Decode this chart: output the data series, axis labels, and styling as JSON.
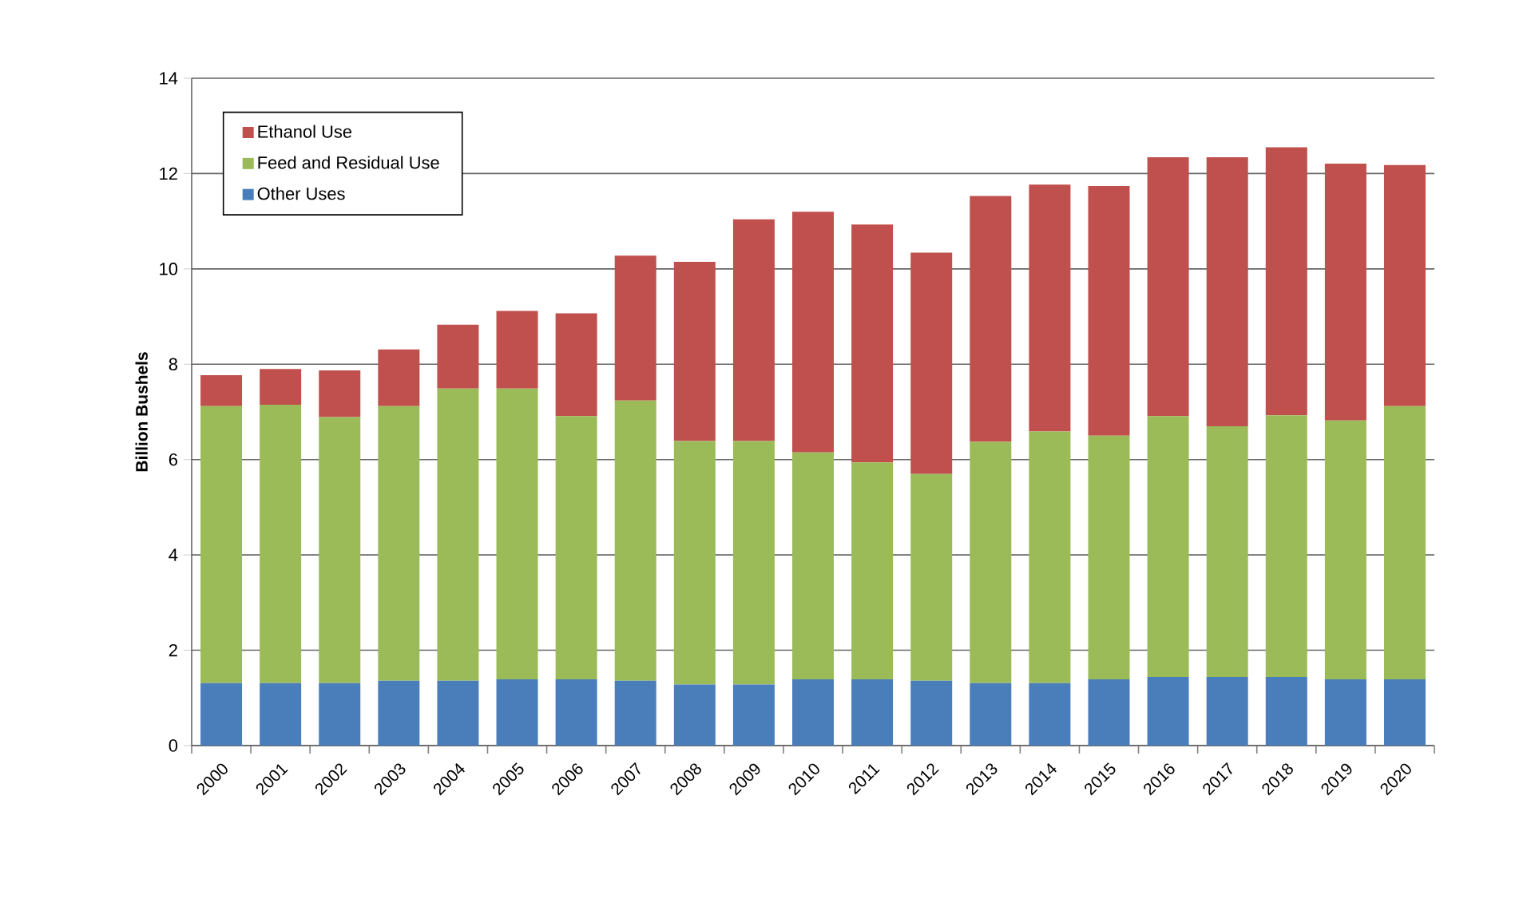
{
  "chart_data": {
    "type": "bar",
    "stacked": true,
    "ylabel": "Billion Bushels",
    "categories": [
      "2000",
      "2001",
      "2002",
      "2003",
      "2004",
      "2005",
      "2006",
      "2007",
      "2008",
      "2009",
      "2010",
      "2011",
      "2012",
      "2013",
      "2014",
      "2015",
      "2016",
      "2017",
      "2018",
      "2019",
      "2020"
    ],
    "series": [
      {
        "name": "Other Uses",
        "color": "#4a7ebb",
        "values": [
          1.31,
          1.31,
          1.31,
          1.36,
          1.36,
          1.39,
          1.39,
          1.36,
          1.28,
          1.28,
          1.39,
          1.39,
          1.36,
          1.31,
          1.31,
          1.39,
          1.44,
          1.44,
          1.44,
          1.39,
          1.39
        ]
      },
      {
        "name": "Feed and Residual Use",
        "color": "#9bbb59",
        "values": [
          5.81,
          5.84,
          5.58,
          5.76,
          6.13,
          6.1,
          5.52,
          5.88,
          5.11,
          5.11,
          4.76,
          4.55,
          4.34,
          5.06,
          5.28,
          5.11,
          5.47,
          5.26,
          5.49,
          5.43,
          5.73
        ]
      },
      {
        "name": "Ethanol Use",
        "color": "#c0504d",
        "values": [
          0.65,
          0.75,
          0.98,
          1.19,
          1.34,
          1.63,
          2.16,
          3.04,
          3.76,
          4.65,
          5.05,
          4.99,
          4.64,
          5.16,
          5.18,
          5.24,
          5.43,
          5.64,
          5.62,
          5.39,
          5.06
        ]
      }
    ],
    "ylim": [
      0,
      14
    ],
    "yticks": [
      0,
      2,
      4,
      6,
      8,
      10,
      12,
      14
    ],
    "grid": "y",
    "legend": "top left"
  }
}
